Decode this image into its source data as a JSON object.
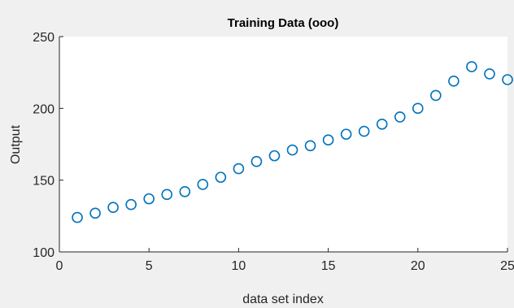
{
  "chart_data": {
    "type": "scatter",
    "title": "Training Data (ooo)",
    "xlabel": "data set index",
    "ylabel": "Output",
    "xlim": [
      0,
      25
    ],
    "ylim": [
      100,
      250
    ],
    "xticks": [
      0,
      5,
      10,
      15,
      20,
      25
    ],
    "yticks": [
      100,
      150,
      200,
      250
    ],
    "grid": false,
    "marker": "circle",
    "marker_color": "#0072bd",
    "x": [
      1,
      2,
      3,
      4,
      5,
      6,
      7,
      8,
      9,
      10,
      11,
      12,
      13,
      14,
      15,
      16,
      17,
      18,
      19,
      20,
      21,
      22,
      23,
      24,
      25
    ],
    "y": [
      124,
      127,
      131,
      133,
      137,
      140,
      142,
      147,
      152,
      158,
      163,
      167,
      171,
      174,
      178,
      182,
      184,
      189,
      194,
      200,
      209,
      219,
      229,
      224,
      220
    ]
  }
}
